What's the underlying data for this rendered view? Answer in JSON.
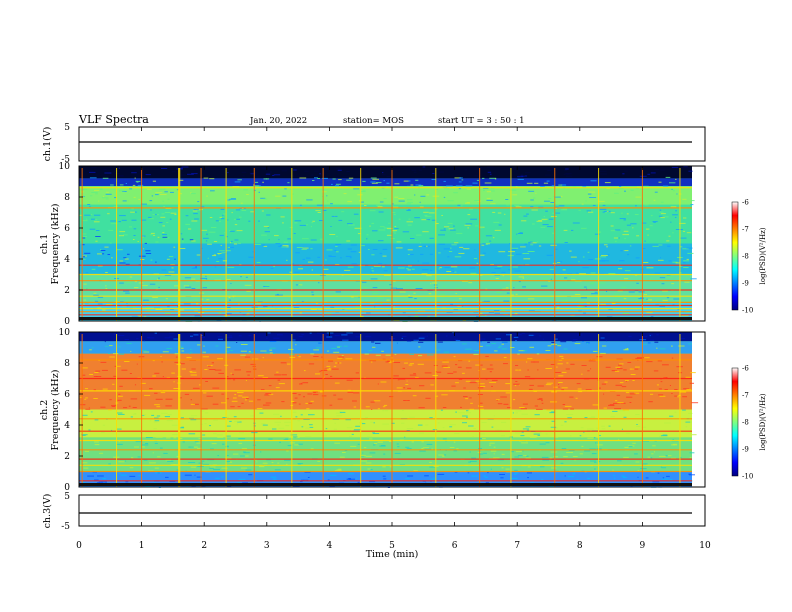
{
  "header": {
    "title": "VLF Spectra",
    "date": "Jan. 20, 2022",
    "station": "station= MOS",
    "start": "start  UT =   3 : 50 : 1"
  },
  "chart_data": {
    "type": "heatmap",
    "xlabel": "Time  (min)",
    "xlim": [
      0,
      10
    ],
    "xticks": [
      "0",
      "1",
      "2",
      "3",
      "4",
      "5",
      "6",
      "7",
      "8",
      "9",
      "10"
    ],
    "panels": [
      {
        "id": "ch1v",
        "ylabel": "ch.1(V)",
        "ylim": [
          -5,
          5
        ],
        "yticks": [
          "5",
          "-5"
        ]
      },
      {
        "id": "ch1",
        "ylabel": "ch.1",
        "ylabel2": "Frequency  (kHz)",
        "ylim": [
          0,
          10
        ],
        "yticks": [
          "0",
          "2",
          "4",
          "6",
          "8",
          "10"
        ]
      },
      {
        "id": "ch2",
        "ylabel": "ch.2",
        "ylabel2": "Frequency  (kHz)",
        "ylim": [
          0,
          10
        ],
        "yticks": [
          "0",
          "2",
          "4",
          "6",
          "8",
          "10"
        ]
      },
      {
        "id": "ch3v",
        "ylabel": "ch.3(V)",
        "ylim": [
          -5,
          5
        ],
        "yticks": [
          "5",
          "-5"
        ]
      }
    ],
    "colorbar": {
      "label": "log(PSD)(V²/Hz)",
      "range": [
        -10,
        -6
      ],
      "ticks": [
        "-6",
        "-7",
        "-8",
        "-9",
        "-10"
      ],
      "colors": [
        "#00007f",
        "#0000ff",
        "#0080ff",
        "#00ffff",
        "#80ff80",
        "#ffff00",
        "#ff8000",
        "#ff0000",
        "#ffffff"
      ]
    },
    "ch1_bands_khz": [
      0.4,
      0.6,
      0.8,
      1.0,
      1.2,
      1.6,
      2.0,
      2.6,
      3.0,
      3.6,
      7.3,
      8.6
    ],
    "ch2_bands_khz": [
      0.4,
      1.0,
      1.4,
      1.8,
      2.4,
      3.0,
      3.6,
      4.4,
      6.2,
      7.0,
      8.2
    ],
    "spike_times_min": [
      0.05,
      0.6,
      1.0,
      1.6,
      1.95,
      2.35,
      2.8,
      3.4,
      3.9,
      4.5,
      5.0,
      5.7,
      6.4,
      6.9,
      7.6,
      8.3,
      9.0,
      9.6
    ]
  }
}
